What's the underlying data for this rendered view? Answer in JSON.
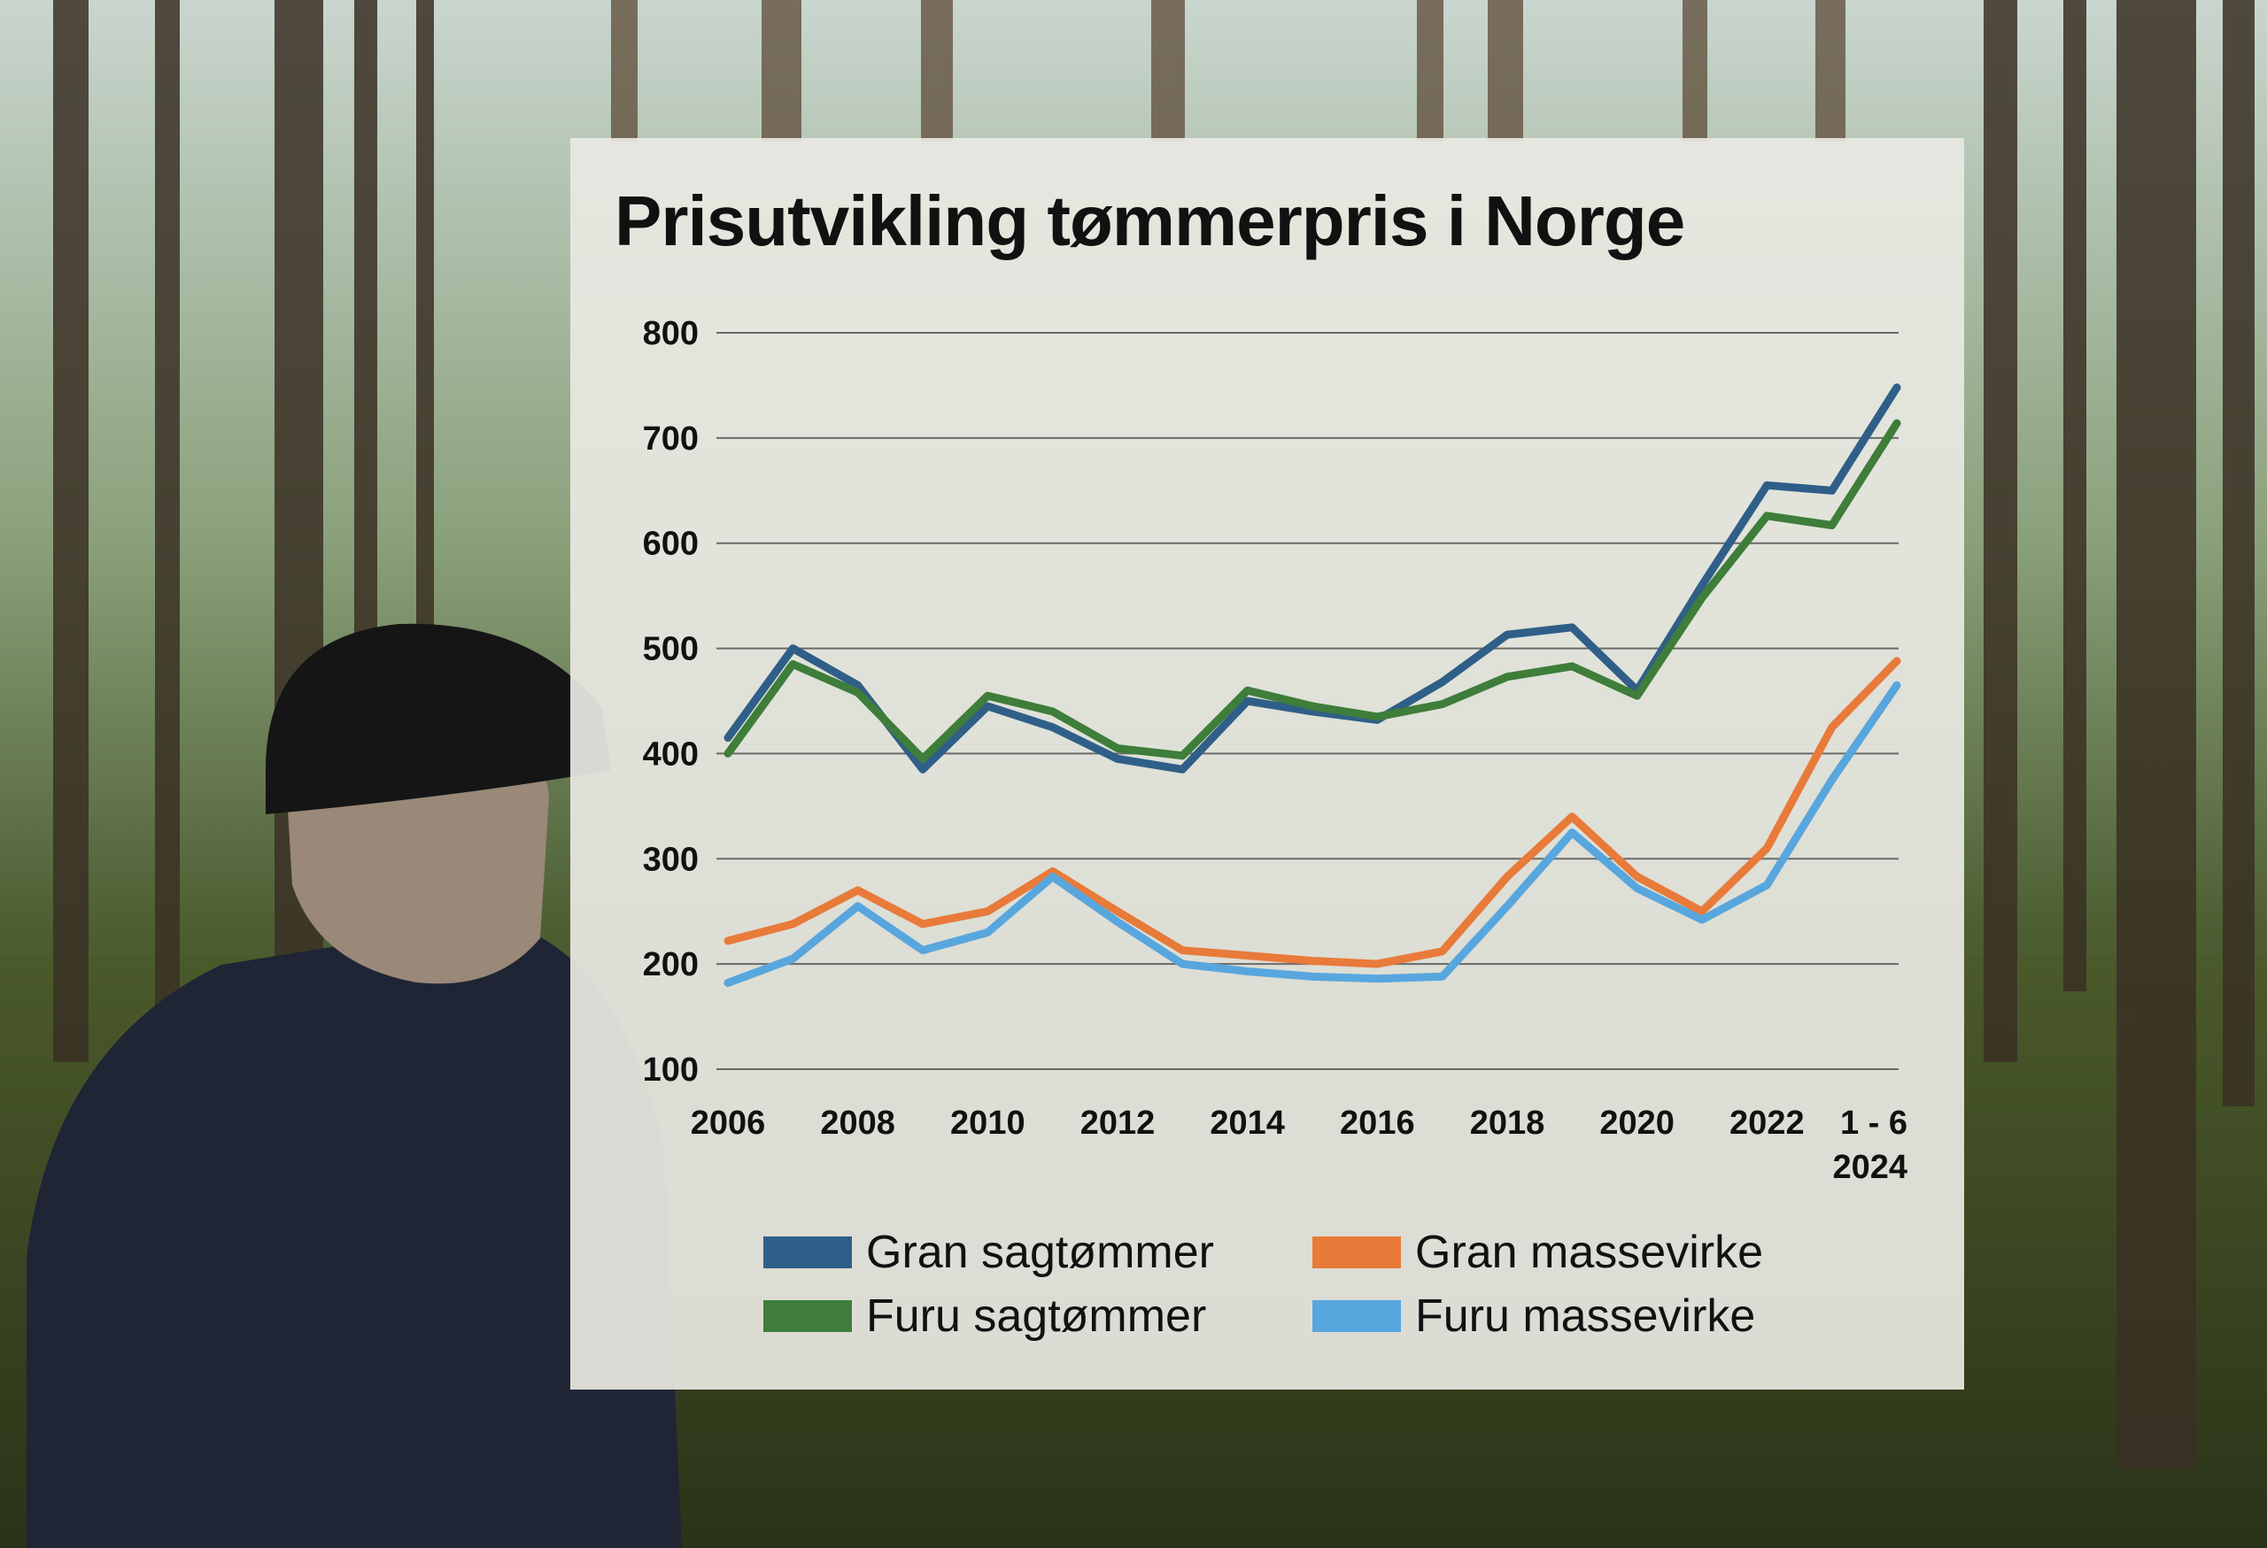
{
  "colors": {
    "gran_sagtommer": "#2f5f88",
    "furu_sagtommer": "#3e7d3a",
    "gran_massevirke": "#e87a3a",
    "furu_massevirke": "#58a6de"
  },
  "chart_data": {
    "type": "line",
    "title": "Prisutvikling tømmerpris i Norge",
    "xlabel": "",
    "ylabel": "",
    "ylim": [
      100,
      800
    ],
    "yticks": [
      100,
      200,
      300,
      400,
      500,
      600,
      700,
      800
    ],
    "grid": true,
    "legend_position": "bottom",
    "x": [
      2006,
      2007,
      2008,
      2009,
      2010,
      2011,
      2012,
      2013,
      2014,
      2015,
      2016,
      2017,
      2018,
      2019,
      2020,
      2021,
      2022,
      2023,
      2024
    ],
    "x_tick_labels": [
      {
        "x": 2006,
        "lines": [
          "2006"
        ]
      },
      {
        "x": 2008,
        "lines": [
          "2008"
        ]
      },
      {
        "x": 2010,
        "lines": [
          "2010"
        ]
      },
      {
        "x": 2012,
        "lines": [
          "2012"
        ]
      },
      {
        "x": 2014,
        "lines": [
          "2014"
        ]
      },
      {
        "x": 2016,
        "lines": [
          "2016"
        ]
      },
      {
        "x": 2018,
        "lines": [
          "2018"
        ]
      },
      {
        "x": 2020,
        "lines": [
          "2020"
        ]
      },
      {
        "x": 2022,
        "lines": [
          "2022"
        ]
      },
      {
        "x": 2024,
        "lines": [
          "1 - 6",
          "2024"
        ]
      }
    ],
    "series": [
      {
        "name": "Gran sagtømmer",
        "color": "#2f5f88",
        "values": [
          415,
          500,
          465,
          385,
          445,
          425,
          395,
          385,
          450,
          440,
          432,
          468,
          513,
          520,
          460,
          560,
          655,
          650,
          748
        ]
      },
      {
        "name": "Furu sagtømmer",
        "color": "#3e7d3a",
        "values": [
          400,
          485,
          458,
          395,
          455,
          440,
          405,
          398,
          460,
          445,
          435,
          447,
          473,
          483,
          455,
          548,
          626,
          617,
          714
        ]
      },
      {
        "name": "Gran massevirke",
        "color": "#e87a3a",
        "values": [
          222,
          238,
          270,
          238,
          250,
          288,
          250,
          213,
          208,
          203,
          200,
          212,
          283,
          340,
          283,
          250,
          310,
          425,
          488
        ]
      },
      {
        "name": "Furu massevirke",
        "color": "#58a6de",
        "values": [
          182,
          205,
          255,
          213,
          230,
          283,
          240,
          200,
          193,
          188,
          186,
          188,
          255,
          325,
          272,
          242,
          275,
          375,
          465
        ]
      }
    ]
  }
}
